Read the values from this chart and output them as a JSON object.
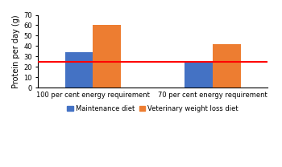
{
  "groups": [
    "100 per cent energy requirement",
    "70 per cent energy requirement"
  ],
  "series": {
    "Maintenance diet": [
      34,
      25
    ],
    "Veterinary weight loss diet": [
      60,
      42
    ]
  },
  "bar_colors": {
    "Maintenance diet": "#4472C4",
    "Veterinary weight loss diet": "#ED7D31"
  },
  "hline_value": 25,
  "hline_color": "#FF0000",
  "ylabel": "Protein per day (g)",
  "ylim": [
    0,
    70
  ],
  "yticks": [
    0,
    10,
    20,
    30,
    40,
    50,
    60,
    70
  ],
  "background_color": "#FFFFFF",
  "bar_width": 0.28,
  "tick_fontsize": 6.0,
  "ylabel_fontsize": 7.0,
  "legend_fontsize": 6.0,
  "hline_linewidth": 1.5
}
